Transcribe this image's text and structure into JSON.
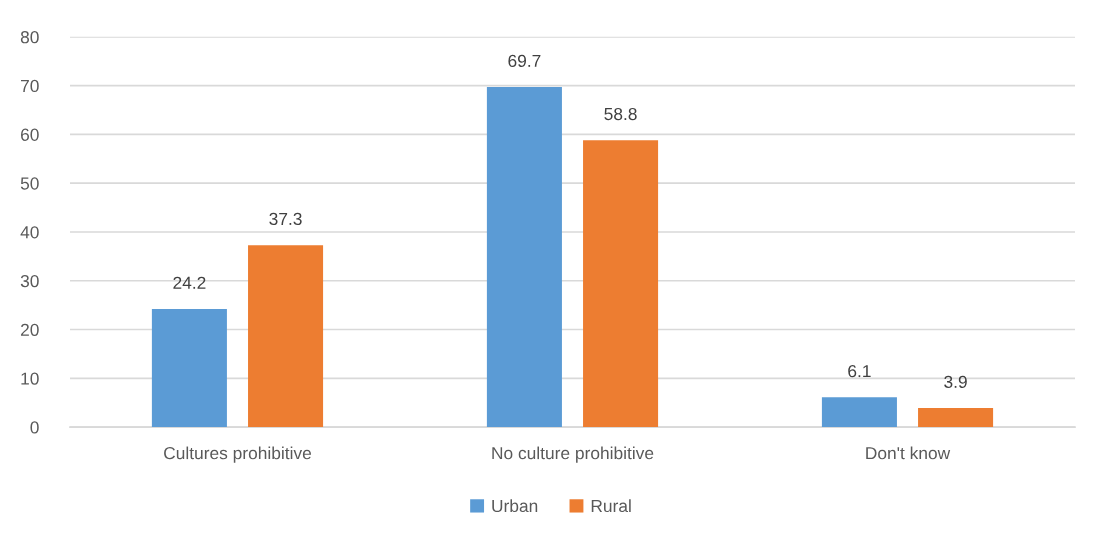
{
  "chart_data": {
    "type": "bar",
    "categories": [
      "Cultures prohibitive",
      "No culture prohibitive",
      "Don't know"
    ],
    "series": [
      {
        "name": "Urban",
        "color": "#5b9bd5",
        "values": [
          24.2,
          69.7,
          6.1
        ]
      },
      {
        "name": "Rural",
        "color": "#ed7d31",
        "values": [
          37.3,
          58.8,
          3.9
        ]
      }
    ],
    "ylim": [
      0,
      80
    ],
    "yticks": [
      0,
      10,
      20,
      30,
      40,
      50,
      60,
      70,
      80
    ],
    "grid": "y",
    "legend": "bottom",
    "data_labels": true
  }
}
